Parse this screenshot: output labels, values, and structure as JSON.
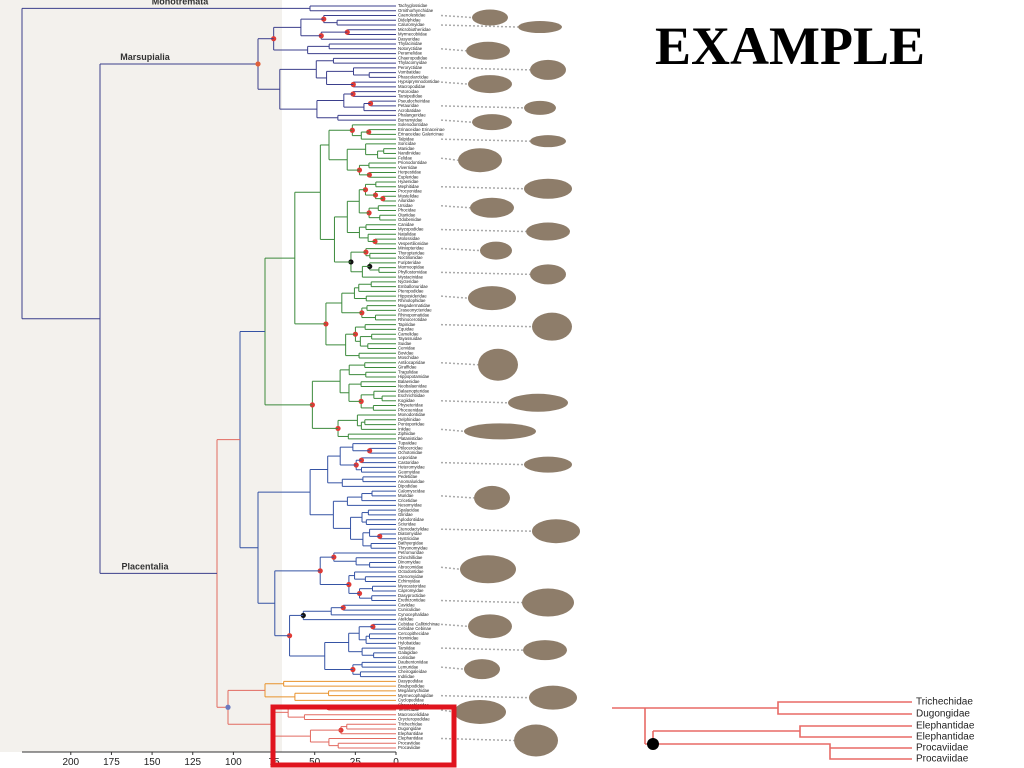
{
  "title": "EXAMPLE",
  "clades": [
    "Monotremata",
    "Marsupialia",
    "Placentalia"
  ],
  "tips": [
    "Tachyglossidae",
    "Ornithorhynchidae",
    "Caenolestidae",
    "Didelphidae",
    "Caluromyidae",
    "Microbiotheriidae",
    "Myrmecobiidae",
    "Dasyuridae",
    "Thylacinidae",
    "Notoryctidae",
    "Peramelidae",
    "Chaeropodidae",
    "Thylacomyidae",
    "Peroryctidae",
    "Vombatidae",
    "Phascolarctidae",
    "Hypsiprymnodontidae",
    "Macropodidae",
    "Potoroidae",
    "Tarsipedidae",
    "Pseudocheiridae",
    "Petauridae",
    "Acrobatidae",
    "Phalangeridae",
    "Burramyidae",
    "Solenodontidae",
    "Erinaceidae Erinaceinae",
    "Erinaceidae Galericinae",
    "Talpidae",
    "Soricidae",
    "Manidae",
    "Nandiniidae",
    "Felidae",
    "Prionodontidae",
    "Viverridae",
    "Herpestidae",
    "Eupleridae",
    "Hyaenidae",
    "Mephitidae",
    "Procyonidae",
    "Mustelidae",
    "Ailuridae",
    "Ursidae",
    "Phocidae",
    "Otariidae",
    "Odobenidae",
    "Canidae",
    "Myzopodidae",
    "Natalidae",
    "Molossidae",
    "Vespertilionidae",
    "Miniopteridae",
    "Thyropteridae",
    "Noctilionidae",
    "Furipteridae",
    "Mormoopidae",
    "Phyllostomidae",
    "Mystacinidae",
    "Nycteridae",
    "Emballonuridae",
    "Pteropodidae",
    "Hipposideridae",
    "Rhinolophidae",
    "Megadermatidae",
    "Craseonycteridae",
    "Rhinopomatidae",
    "Rhinocerotidae",
    "Tapiridae",
    "Equidae",
    "Camelidae",
    "Tayassuidae",
    "Suidae",
    "Cervidae",
    "Bovidae",
    "Moschidae",
    "Antilocapridae",
    "Giraffidae",
    "Tragulidae",
    "Hippopotamidae",
    "Balaenidae",
    "Neobalaenidae",
    "Balaenopteridae",
    "Eschrichtiidae",
    "Kogiidae",
    "Physeteridae",
    "Phocoenidae",
    "Monodontidae",
    "Delphinidae",
    "Pontoporiidae",
    "Iniidae",
    "Ziphiidae",
    "Platanistidae",
    "Tupaiidae",
    "Ptilocercidae",
    "Ochotonidae",
    "Leporidae",
    "Castoridae",
    "Heteromyidae",
    "Geomyidae",
    "Pedetidae",
    "Anomaluridae",
    "Dipodidae",
    "Calomyscidae",
    "Muridae",
    "Cricetidae",
    "Nesomyidae",
    "Spalacidae",
    "Gliridae",
    "Aplodontiidae",
    "Sciuridae",
    "Ctenodactylidae",
    "Diatomyidae",
    "Hystricidae",
    "Bathyergidae",
    "Thryonomyidae",
    "Petromuridae",
    "Chinchillidae",
    "Dinomyidae",
    "Abrocomidae",
    "Octodontidae",
    "Ctenomyidae",
    "Echimyidae",
    "Myocastoridae",
    "Capromyidae",
    "Dasyproctidae",
    "Erethizontidae",
    "Caviidae",
    "Cuniculidae",
    "Cynocephalidae",
    "Atelidae",
    "Cebidae Callitrichinae",
    "Cebidae Cebinae",
    "Cercopithecidae",
    "Hominidae",
    "Hylobatidae",
    "Tarsiidae",
    "Galagidae",
    "Lorisidae",
    "Daubentoniidae",
    "Lemuridae",
    "Cheirogaleidae",
    "Indriidae",
    "Dasypodidae",
    "Bradypodidae",
    "Megalonychidae",
    "Myrmecophagidae",
    "Cyclopedidae",
    "Chrysochloridae",
    "Tenrecidae",
    "Macroscelididae",
    "Orycteropodidae",
    "Trichechidae",
    "Dugongidae",
    "Elephantidae",
    "Elephantidae",
    "Procaviidae",
    "Procaviidae"
  ],
  "time_axis": {
    "lim": [
      230,
      0
    ],
    "ticks": [
      200,
      175,
      150,
      125,
      100,
      75,
      50,
      25,
      0
    ]
  },
  "inset": {
    "labels": [
      "Trichechidae",
      "Dugongidae",
      "Elephantidae",
      "Elephantidae",
      "Procaviidae",
      "Procaviidae"
    ]
  }
}
